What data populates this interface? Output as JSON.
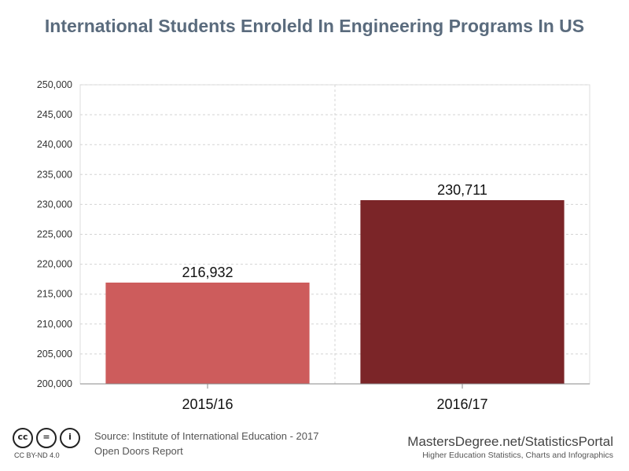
{
  "chart_data": {
    "type": "bar",
    "title": "International Students Enroleld In Engineering Programs In US",
    "categories": [
      "2015/16",
      "2016/17"
    ],
    "values": [
      216932,
      230711
    ],
    "data_labels": [
      "216,932",
      "230,711"
    ],
    "colors": [
      "#cd5c5c",
      "#7b2528"
    ],
    "ylim": [
      200000,
      250000
    ],
    "yticks": [
      200000,
      205000,
      210000,
      215000,
      220000,
      225000,
      230000,
      235000,
      240000,
      245000,
      250000
    ],
    "ytick_labels": [
      "200,000",
      "205,000",
      "210,000",
      "215,000",
      "220,000",
      "225,000",
      "230,000",
      "235,000",
      "240,000",
      "245,000",
      "250,000"
    ],
    "xlabel": "",
    "ylabel": "",
    "grid": true
  },
  "footer": {
    "license_icons": [
      "cc-icon",
      "nd-icon",
      "by-icon"
    ],
    "license_glyphs": [
      "cc",
      "=",
      "i"
    ],
    "license_text": "CC BY-ND 4.0",
    "source_line1": "Source: Institute of International Education - 2017",
    "source_line2": "Open Doors Report",
    "brand_name": "MastersDegree.net/StatisticsPortal",
    "brand_tagline": "Higher Education Statistics, Charts and Infographics"
  }
}
